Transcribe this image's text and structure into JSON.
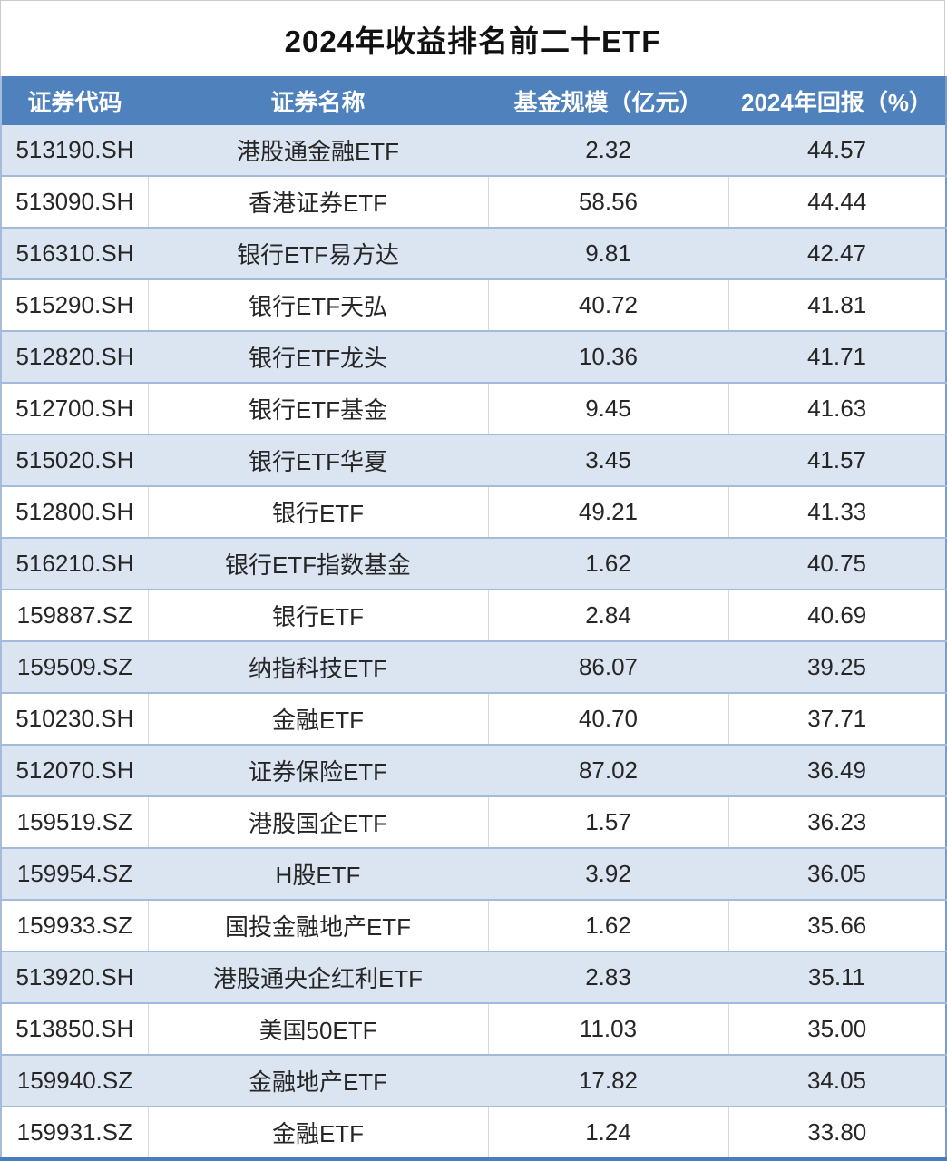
{
  "title": "2024年收益排名前二十ETF",
  "table": {
    "columns": [
      "证券代码",
      "证券名称",
      "基金规模（亿元）",
      "2024年回报（%）"
    ],
    "rows": [
      {
        "code": "513190.SH",
        "name": "港股通金融ETF",
        "scale": "2.32",
        "ret": "44.57"
      },
      {
        "code": "513090.SH",
        "name": "香港证券ETF",
        "scale": "58.56",
        "ret": "44.44"
      },
      {
        "code": "516310.SH",
        "name": "银行ETF易方达",
        "scale": "9.81",
        "ret": "42.47"
      },
      {
        "code": "515290.SH",
        "name": "银行ETF天弘",
        "scale": "40.72",
        "ret": "41.81"
      },
      {
        "code": "512820.SH",
        "name": "银行ETF龙头",
        "scale": "10.36",
        "ret": "41.71"
      },
      {
        "code": "512700.SH",
        "name": "银行ETF基金",
        "scale": "9.45",
        "ret": "41.63"
      },
      {
        "code": "515020.SH",
        "name": "银行ETF华夏",
        "scale": "3.45",
        "ret": "41.57"
      },
      {
        "code": "512800.SH",
        "name": "银行ETF",
        "scale": "49.21",
        "ret": "41.33"
      },
      {
        "code": "516210.SH",
        "name": "银行ETF指数基金",
        "scale": "1.62",
        "ret": "40.75"
      },
      {
        "code": "159887.SZ",
        "name": "银行ETF",
        "scale": "2.84",
        "ret": "40.69"
      },
      {
        "code": "159509.SZ",
        "name": "纳指科技ETF",
        "scale": "86.07",
        "ret": "39.25"
      },
      {
        "code": "510230.SH",
        "name": "金融ETF",
        "scale": "40.70",
        "ret": "37.71"
      },
      {
        "code": "512070.SH",
        "name": "证券保险ETF",
        "scale": "87.02",
        "ret": "36.49"
      },
      {
        "code": "159519.SZ",
        "name": "港股国企ETF",
        "scale": "1.57",
        "ret": "36.23"
      },
      {
        "code": "159954.SZ",
        "name": "H股ETF",
        "scale": "3.92",
        "ret": "36.05"
      },
      {
        "code": "159933.SZ",
        "name": "国投金融地产ETF",
        "scale": "1.62",
        "ret": "35.66"
      },
      {
        "code": "513920.SH",
        "name": "港股通央企红利ETF",
        "scale": "2.83",
        "ret": "35.11"
      },
      {
        "code": "513850.SH",
        "name": "美国50ETF",
        "scale": "11.03",
        "ret": "35.00"
      },
      {
        "code": "159940.SZ",
        "name": "金融地产ETF",
        "scale": "17.82",
        "ret": "34.05"
      },
      {
        "code": "159931.SZ",
        "name": "金融ETF",
        "scale": "1.24",
        "ret": "33.80"
      }
    ]
  },
  "colors": {
    "header_bg": "#4f81bd",
    "header_text": "#ffffff",
    "stripe_row_bg": "#dbe5f1",
    "plain_row_bg": "#ffffff",
    "row_separator": "#a3badb",
    "plain_row_divider": "#d9d9d9",
    "outer_bottom_border": "#4a7ebb",
    "body_text": "#262626",
    "title_text": "#111111"
  },
  "chart_data": {
    "type": "table",
    "title": "2024年收益排名前二十ETF",
    "columns": [
      "证券代码",
      "证券名称",
      "基金规模（亿元）",
      "2024年回报（%）"
    ],
    "rows": [
      [
        "513190.SH",
        "港股通金融ETF",
        2.32,
        44.57
      ],
      [
        "513090.SH",
        "香港证券ETF",
        58.56,
        44.44
      ],
      [
        "516310.SH",
        "银行ETF易方达",
        9.81,
        42.47
      ],
      [
        "515290.SH",
        "银行ETF天弘",
        40.72,
        41.81
      ],
      [
        "512820.SH",
        "银行ETF龙头",
        10.36,
        41.71
      ],
      [
        "512700.SH",
        "银行ETF基金",
        9.45,
        41.63
      ],
      [
        "515020.SH",
        "银行ETF华夏",
        3.45,
        41.57
      ],
      [
        "512800.SH",
        "银行ETF",
        49.21,
        41.33
      ],
      [
        "516210.SH",
        "银行ETF指数基金",
        1.62,
        40.75
      ],
      [
        "159887.SZ",
        "银行ETF",
        2.84,
        40.69
      ],
      [
        "159509.SZ",
        "纳指科技ETF",
        86.07,
        39.25
      ],
      [
        "510230.SH",
        "金融ETF",
        40.7,
        37.71
      ],
      [
        "512070.SH",
        "证券保险ETF",
        87.02,
        36.49
      ],
      [
        "159519.SZ",
        "港股国企ETF",
        1.57,
        36.23
      ],
      [
        "159954.SZ",
        "H股ETF",
        3.92,
        36.05
      ],
      [
        "159933.SZ",
        "国投金融地产ETF",
        1.62,
        35.66
      ],
      [
        "513920.SH",
        "港股通央企红利ETF",
        2.83,
        35.11
      ],
      [
        "513850.SH",
        "美国50ETF",
        11.03,
        35.0
      ],
      [
        "159940.SZ",
        "金融地产ETF",
        17.82,
        34.05
      ],
      [
        "159931.SZ",
        "金融ETF",
        1.24,
        33.8
      ]
    ]
  }
}
